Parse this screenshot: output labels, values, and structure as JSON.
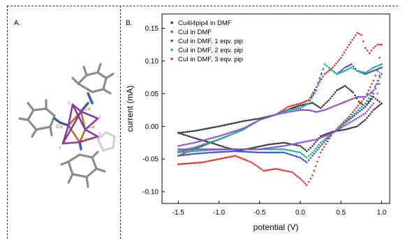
{
  "panel_a": {
    "label": "A.",
    "atom_labels": [
      "Cu",
      "Cu",
      "Cu",
      "Cu",
      "I",
      "I",
      "I",
      "I"
    ]
  },
  "panel_b": {
    "label": "B."
  },
  "chart_data": {
    "type": "scatter",
    "title": "",
    "xlabel": "potential (V)",
    "ylabel": "current (mA)",
    "xlim": [
      -1.7,
      1.1
    ],
    "ylim": [
      -0.118,
      0.172
    ],
    "xticks": [
      -1.5,
      -1.0,
      -0.5,
      0.0,
      0.5,
      1.0
    ],
    "xtick_labels": [
      "-1.5",
      "-1.0",
      "-0.5",
      "0.0",
      "0.5",
      "1.0"
    ],
    "yticks": [
      -0.1,
      -0.05,
      0.0,
      0.05,
      0.1,
      0.15
    ],
    "ytick_labels": [
      "-0.10",
      "-0.05",
      "0.00",
      "0.05",
      "0.10",
      "0.15"
    ],
    "legend_position": "top-left",
    "series": [
      {
        "name": "Cu4I4pip4 in DMF",
        "color": "#333333",
        "upper": [
          [
            -1.5,
            -0.01
          ],
          [
            -1.3,
            -0.007
          ],
          [
            -1.0,
            0.0
          ],
          [
            -0.7,
            0.008
          ],
          [
            -0.5,
            0.012
          ],
          [
            -0.3,
            0.018
          ],
          [
            -0.1,
            0.028
          ],
          [
            0.0,
            0.032
          ],
          [
            0.15,
            0.036
          ],
          [
            0.25,
            0.028
          ],
          [
            0.35,
            0.04
          ],
          [
            0.45,
            0.055
          ],
          [
            0.55,
            0.062
          ],
          [
            0.65,
            0.052
          ],
          [
            0.72,
            0.038
          ],
          [
            0.8,
            0.03
          ],
          [
            0.9,
            0.045
          ],
          [
            0.95,
            0.04
          ],
          [
            1.0,
            0.035
          ]
        ],
        "lower": [
          [
            1.0,
            0.035
          ],
          [
            0.9,
            0.025
          ],
          [
            0.8,
            0.01
          ],
          [
            0.7,
            0.0
          ],
          [
            0.55,
            -0.005
          ],
          [
            0.4,
            -0.008
          ],
          [
            0.25,
            -0.015
          ],
          [
            0.15,
            -0.03
          ],
          [
            0.08,
            -0.038
          ],
          [
            0.0,
            -0.03
          ],
          [
            -0.2,
            -0.025
          ],
          [
            -0.4,
            -0.028
          ],
          [
            -0.55,
            -0.032
          ],
          [
            -0.75,
            -0.037
          ],
          [
            -0.9,
            -0.033
          ],
          [
            -1.1,
            -0.025
          ],
          [
            -1.3,
            -0.018
          ],
          [
            -1.5,
            -0.01
          ]
        ]
      },
      {
        "name": "CuI in DMF",
        "color": "#e03030",
        "upper": [
          [
            -1.5,
            -0.045
          ],
          [
            -1.3,
            -0.035
          ],
          [
            -1.0,
            -0.02
          ],
          [
            -0.7,
            -0.005
          ],
          [
            -0.5,
            0.01
          ],
          [
            -0.3,
            0.018
          ],
          [
            -0.15,
            0.03
          ],
          [
            0.0,
            0.035
          ],
          [
            0.1,
            0.04
          ],
          [
            0.2,
            0.06
          ],
          [
            0.3,
            0.08
          ],
          [
            0.4,
            0.09
          ],
          [
            0.5,
            0.105
          ],
          [
            0.6,
            0.125
          ],
          [
            0.7,
            0.143
          ],
          [
            0.75,
            0.14
          ],
          [
            0.8,
            0.12
          ],
          [
            0.85,
            0.112
          ],
          [
            0.9,
            0.12
          ],
          [
            0.95,
            0.125
          ],
          [
            1.0,
            0.125
          ]
        ],
        "lower": [
          [
            1.0,
            0.125
          ],
          [
            0.95,
            0.085
          ],
          [
            0.9,
            0.07
          ],
          [
            0.8,
            0.045
          ],
          [
            0.6,
            0.015
          ],
          [
            0.4,
            -0.01
          ],
          [
            0.25,
            -0.04
          ],
          [
            0.15,
            -0.075
          ],
          [
            0.08,
            -0.09
          ],
          [
            0.0,
            -0.08
          ],
          [
            -0.1,
            -0.07
          ],
          [
            -0.3,
            -0.065
          ],
          [
            -0.45,
            -0.068
          ],
          [
            -0.6,
            -0.055
          ],
          [
            -0.8,
            -0.045
          ],
          [
            -1.0,
            -0.05
          ],
          [
            -1.2,
            -0.055
          ],
          [
            -1.5,
            -0.058
          ]
        ]
      },
      {
        "name": "CuI in DMF, 1 eqv. pip",
        "color": "#3b4ec4",
        "upper": [
          [
            -1.5,
            -0.04
          ],
          [
            -1.3,
            -0.033
          ],
          [
            -1.0,
            -0.02
          ],
          [
            -0.7,
            -0.005
          ],
          [
            -0.5,
            0.01
          ],
          [
            -0.3,
            0.018
          ],
          [
            -0.15,
            0.025
          ],
          [
            0.0,
            0.028
          ],
          [
            0.1,
            0.035
          ],
          [
            0.2,
            0.06
          ],
          [
            0.3,
            0.095
          ],
          [
            0.35,
            0.09
          ],
          [
            0.45,
            0.08
          ],
          [
            0.55,
            0.09
          ],
          [
            0.63,
            0.095
          ],
          [
            0.7,
            0.085
          ],
          [
            0.8,
            0.08
          ],
          [
            0.9,
            0.085
          ],
          [
            1.0,
            0.09
          ]
        ],
        "lower": [
          [
            1.0,
            0.09
          ],
          [
            0.95,
            0.065
          ],
          [
            0.9,
            0.05
          ],
          [
            0.8,
            0.03
          ],
          [
            0.6,
            0.01
          ],
          [
            0.4,
            -0.01
          ],
          [
            0.25,
            -0.03
          ],
          [
            0.15,
            -0.045
          ],
          [
            0.08,
            -0.055
          ],
          [
            0.0,
            -0.048
          ],
          [
            -0.2,
            -0.04
          ],
          [
            -0.5,
            -0.04
          ],
          [
            -0.8,
            -0.038
          ],
          [
            -1.1,
            -0.04
          ],
          [
            -1.3,
            -0.042
          ],
          [
            -1.5,
            -0.045
          ]
        ]
      },
      {
        "name": "CuI in DMF, 2 eqv. pip",
        "color": "#1fb08c",
        "upper": [
          [
            -1.5,
            -0.038
          ],
          [
            -1.3,
            -0.032
          ],
          [
            -1.0,
            -0.02
          ],
          [
            -0.7,
            -0.005
          ],
          [
            -0.5,
            0.01
          ],
          [
            -0.3,
            0.018
          ],
          [
            -0.15,
            0.025
          ],
          [
            0.0,
            0.028
          ],
          [
            0.1,
            0.035
          ],
          [
            0.2,
            0.055
          ],
          [
            0.3,
            0.095
          ],
          [
            0.35,
            0.09
          ],
          [
            0.45,
            0.08
          ],
          [
            0.55,
            0.085
          ],
          [
            0.63,
            0.09
          ],
          [
            0.7,
            0.085
          ],
          [
            0.8,
            0.082
          ],
          [
            0.9,
            0.09
          ],
          [
            1.0,
            0.095
          ]
        ],
        "lower": [
          [
            1.0,
            0.095
          ],
          [
            0.95,
            0.07
          ],
          [
            0.9,
            0.055
          ],
          [
            0.8,
            0.035
          ],
          [
            0.6,
            0.012
          ],
          [
            0.4,
            -0.01
          ],
          [
            0.25,
            -0.025
          ],
          [
            0.15,
            -0.04
          ],
          [
            0.08,
            -0.048
          ],
          [
            0.0,
            -0.04
          ],
          [
            -0.2,
            -0.035
          ],
          [
            -0.5,
            -0.035
          ],
          [
            -0.8,
            -0.035
          ],
          [
            -1.1,
            -0.036
          ],
          [
            -1.3,
            -0.038
          ],
          [
            -1.5,
            -0.04
          ]
        ]
      },
      {
        "name": "CuI in DMF, 3 eqv. pip",
        "color": "#8a4fd0",
        "upper": [
          [
            -1.5,
            -0.03
          ],
          [
            -1.3,
            -0.025
          ],
          [
            -1.0,
            -0.015
          ],
          [
            -0.7,
            -0.003
          ],
          [
            -0.5,
            0.01
          ],
          [
            -0.3,
            0.018
          ],
          [
            -0.15,
            0.022
          ],
          [
            0.0,
            0.025
          ],
          [
            0.1,
            0.025
          ],
          [
            0.2,
            0.022
          ],
          [
            0.3,
            0.025
          ],
          [
            0.4,
            0.03
          ],
          [
            0.5,
            0.035
          ],
          [
            0.6,
            0.04
          ],
          [
            0.7,
            0.045
          ],
          [
            0.8,
            0.045
          ],
          [
            0.9,
            0.055
          ],
          [
            1.0,
            0.08
          ]
        ],
        "lower": [
          [
            1.0,
            0.08
          ],
          [
            0.95,
            0.05
          ],
          [
            0.9,
            0.035
          ],
          [
            0.8,
            0.02
          ],
          [
            0.6,
            0.005
          ],
          [
            0.4,
            -0.01
          ],
          [
            0.2,
            -0.02
          ],
          [
            0.0,
            -0.025
          ],
          [
            -0.2,
            -0.03
          ],
          [
            -0.5,
            -0.035
          ],
          [
            -0.8,
            -0.035
          ],
          [
            -1.1,
            -0.035
          ],
          [
            -1.3,
            -0.035
          ],
          [
            -1.5,
            -0.035
          ]
        ]
      }
    ]
  }
}
